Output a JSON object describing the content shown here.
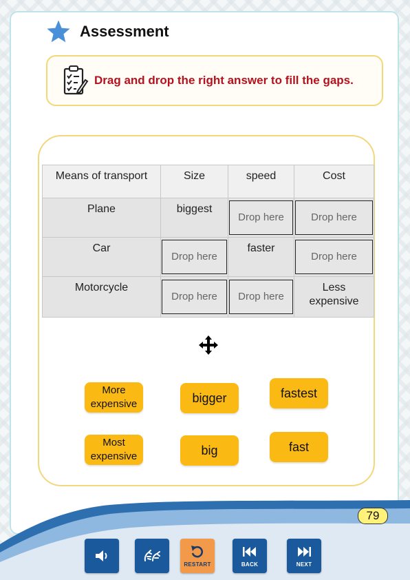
{
  "header": {
    "title": "Assessment",
    "icon": "star-icon",
    "icon_color": "#4a90d9"
  },
  "instruction": {
    "text": "Drag and drop the right answer to fill the gaps.",
    "icon": "clipboard-checklist-icon",
    "text_color": "#b3121e"
  },
  "table": {
    "headers": [
      "Means of transport",
      "Size",
      "speed",
      "Cost"
    ],
    "drop_placeholder": "Drop here",
    "rows": [
      {
        "name": "Plane",
        "size": "biggest"
      },
      {
        "name": "Car",
        "speed": "faster"
      },
      {
        "name": "Motorcycle",
        "cost_line1": "Less",
        "cost_line2": "expensive"
      }
    ]
  },
  "choices": {
    "more_expensive": [
      "More",
      "expensive"
    ],
    "bigger": "bigger",
    "fastest": "fastest",
    "most_expensive": [
      "Most",
      "expensive"
    ],
    "big": "big",
    "fast": "fast",
    "chip_color": "#fbb914"
  },
  "footer": {
    "page_number": "79",
    "buttons": {
      "audio": {
        "icon": "speaker-icon"
      },
      "sign_language": {
        "icon": "sign-language-icon"
      },
      "restart": {
        "label": "RESTART",
        "icon": "restart-icon"
      },
      "back": {
        "label": "BACK",
        "icon": "rewind-icon"
      },
      "next": {
        "label": "NEXT",
        "icon": "fast-forward-icon"
      }
    },
    "button_color": "#1a5a9c",
    "restart_color": "#f29a4a"
  }
}
